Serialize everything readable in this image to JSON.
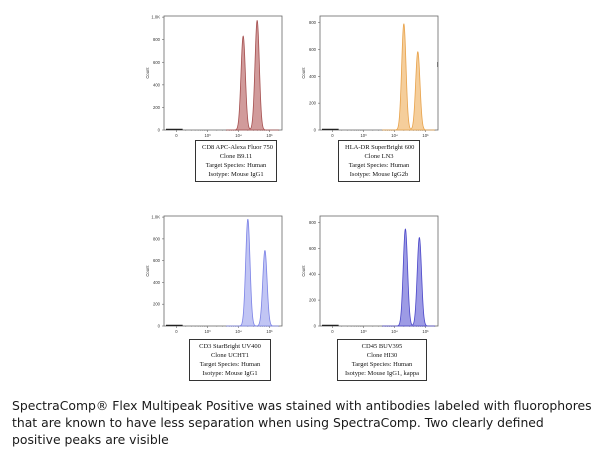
{
  "chart_data": [
    {
      "type": "histogram",
      "color": "#a54f4f",
      "fill": "#c98a8a",
      "ylabel": "Count",
      "yticks": [
        "0",
        "200",
        "400",
        "600",
        "800",
        "1.0K"
      ],
      "xticks": [
        "0",
        "10³",
        "10⁴",
        "10⁵"
      ],
      "peaks": [
        {
          "x": 4.15,
          "height": 0.84
        },
        {
          "x": 4.6,
          "height": 0.98
        }
      ],
      "legend": [
        "CD8 APC-Alexa Fluor 750",
        "Clone B9.11",
        "Target Species: Human",
        "Isotype: Mouse IgG1"
      ]
    },
    {
      "type": "histogram",
      "color": "#e8a24a",
      "fill": "#f3c58a",
      "ylabel": "Count",
      "yticks": [
        "0",
        "200",
        "400",
        "600",
        "800"
      ],
      "xticks": [
        "0",
        "10³",
        "10⁴",
        "10⁵"
      ],
      "peaks": [
        {
          "x": 4.3,
          "height": 0.95
        },
        {
          "x": 4.75,
          "height": 0.7
        }
      ],
      "legend": [
        "HLA-DR SuperBright 600",
        "Clone LN3",
        "Target Species: Human",
        "Isotype: Mouse IgG2b"
      ]
    },
    {
      "type": "histogram",
      "color": "#7b82e6",
      "fill": "#b6bbf2",
      "ylabel": "Count",
      "yticks": [
        "0",
        "200",
        "400",
        "600",
        "800",
        "1.0K"
      ],
      "xticks": [
        "0",
        "10³",
        "10⁴",
        "10⁵"
      ],
      "peaks": [
        {
          "x": 4.3,
          "height": 0.99
        },
        {
          "x": 4.85,
          "height": 0.7
        }
      ],
      "legend": [
        "CD3 StarBright UV400",
        "Clone UCHT1",
        "Target Species: Human",
        "Isotype: Mouse IgG1"
      ]
    },
    {
      "type": "histogram",
      "color": "#4a46c8",
      "fill": "#8c8ae0",
      "ylabel": "Count",
      "yticks": [
        "0",
        "200",
        "400",
        "600",
        "800"
      ],
      "xticks": [
        "0",
        "10³",
        "10⁴",
        "10⁵"
      ],
      "peaks": [
        {
          "x": 4.35,
          "height": 0.9
        },
        {
          "x": 4.8,
          "height": 0.82
        }
      ],
      "legend": [
        "CD45 BUV395",
        "Clone HI30",
        "Target Species: Human",
        "Isotype: Mouse IgG1, kappa"
      ]
    }
  ],
  "caption": "SpectraComp® Flex Multipeak Positive was stained with antibodies labeled with fluorophores that are known to have less separation when using SpectraComp. Two clearly defined positive peaks are visible"
}
